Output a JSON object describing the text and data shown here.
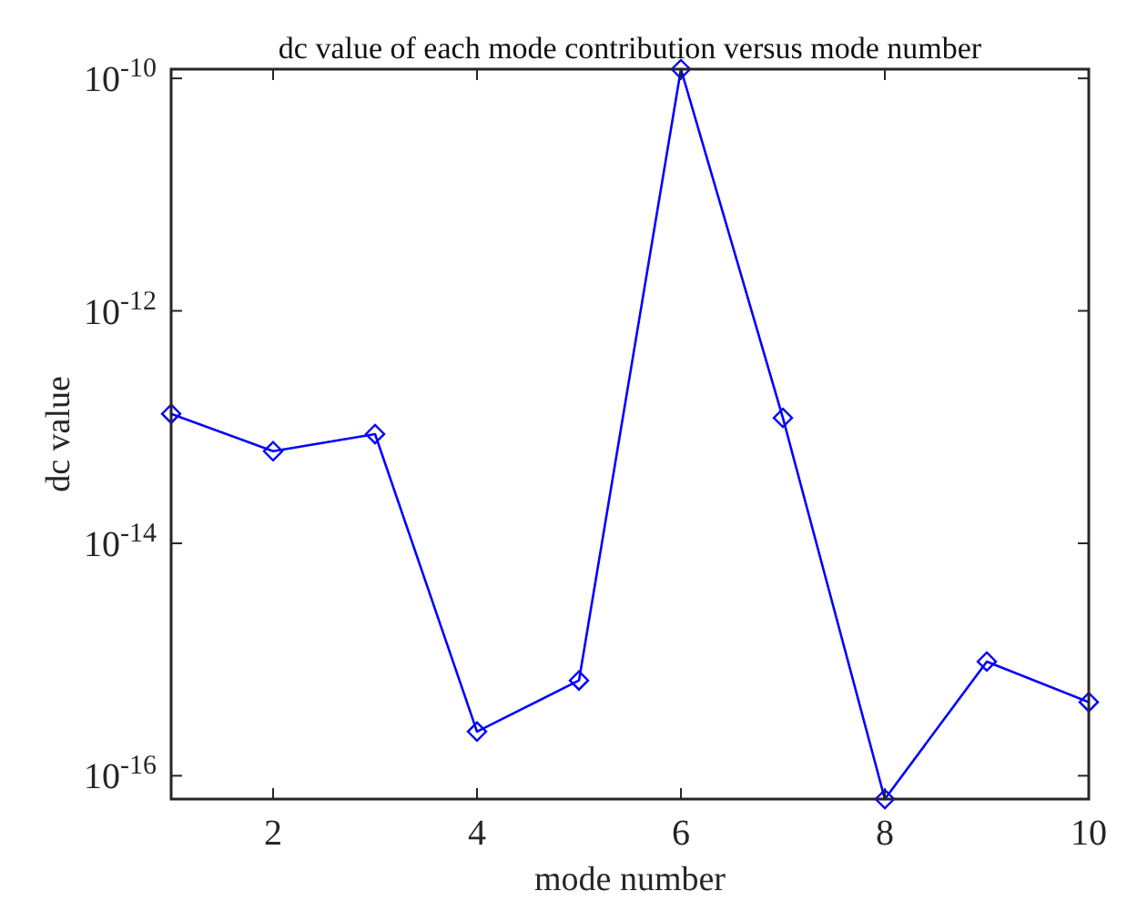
{
  "chart_data": {
    "type": "line",
    "title": "dc value of each mode contribution versus mode number",
    "xlabel": "mode number",
    "ylabel": "dc value",
    "x": [
      1,
      2,
      3,
      4,
      5,
      6,
      7,
      8,
      9,
      10
    ],
    "series": [
      {
        "color": "#0000ff",
        "values": [
          1.3e-13,
          6.2e-14,
          8.7e-14,
          2.4e-16,
          6.6e-16,
          1.2e-10,
          1.2e-13,
          6.3e-17,
          9.6e-16,
          4.3e-16
        ]
      }
    ],
    "log": "y",
    "marker": "diamond",
    "line_style": "solid",
    "grid": false,
    "xlim": [
      1,
      10
    ],
    "xticks": [
      2,
      4,
      6,
      8,
      10
    ],
    "ylim": [
      6.3e-17,
      1.2e-10
    ],
    "yticks": [
      {
        "value": 1e-16,
        "label": "10$^{-16}$"
      },
      {
        "value": 1e-14,
        "label": "10$^{-14}$"
      },
      {
        "value": 1e-12,
        "label": "10$^{-12}$"
      },
      {
        "value": 1e-10,
        "label": "10$^{-10}$"
      }
    ]
  }
}
